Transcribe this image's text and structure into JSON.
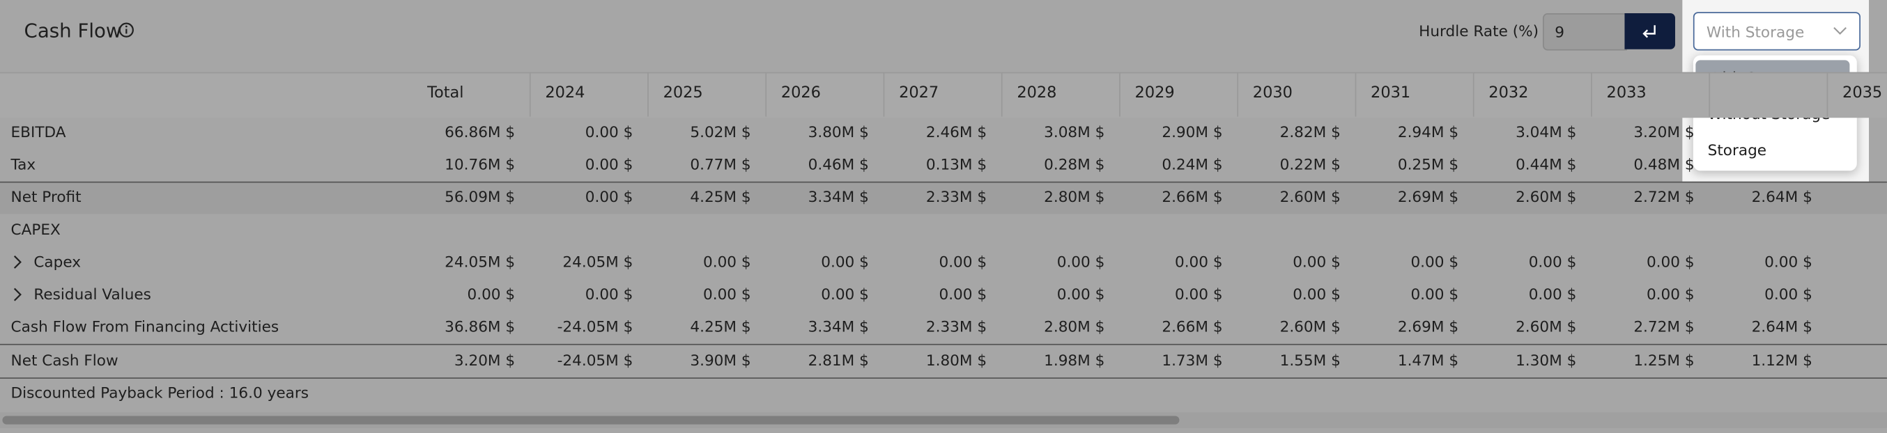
{
  "header": {
    "title": "Cash Flow",
    "hurdle_label": "Hurdle Rate (%) :",
    "hurdle_value": "9",
    "selected": "With Storage"
  },
  "dropdown": {
    "options": [
      "With Storage",
      "Without Storage",
      "Storage"
    ]
  },
  "table": {
    "columns": [
      "Total",
      "2024",
      "2025",
      "2026",
      "2027",
      "2028",
      "2029",
      "2030",
      "2031",
      "2032",
      "2033",
      null,
      "2035"
    ],
    "rows": [
      {
        "label": "EBITDA",
        "values": [
          "66.86M $",
          "0.00 $",
          "5.02M $",
          "3.80M $",
          "2.46M $",
          "3.08M $",
          "2.90M $",
          "2.82M $",
          "2.94M $",
          "3.04M $",
          "3.20M $",
          null,
          null
        ]
      },
      {
        "label": "Tax",
        "values": [
          "10.76M $",
          "0.00 $",
          "0.77M $",
          "0.46M $",
          "0.13M $",
          "0.28M $",
          "0.24M $",
          "0.22M $",
          "0.25M $",
          "0.44M $",
          "0.48M $",
          null,
          null
        ]
      },
      {
        "label": "Net Profit",
        "values": [
          "56.09M $",
          "0.00 $",
          "4.25M $",
          "3.34M $",
          "2.33M $",
          "2.80M $",
          "2.66M $",
          "2.60M $",
          "2.69M $",
          "2.60M $",
          "2.72M $",
          "2.64M $",
          null
        ]
      },
      {
        "label": "CAPEX",
        "values": [
          null,
          null,
          null,
          null,
          null,
          null,
          null,
          null,
          null,
          null,
          null,
          null,
          null
        ]
      },
      {
        "label": "Capex",
        "values": [
          "24.05M $",
          "24.05M $",
          "0.00 $",
          "0.00 $",
          "0.00 $",
          "0.00 $",
          "0.00 $",
          "0.00 $",
          "0.00 $",
          "0.00 $",
          "0.00 $",
          "0.00 $",
          null
        ]
      },
      {
        "label": "Residual Values",
        "values": [
          "0.00 $",
          "0.00 $",
          "0.00 $",
          "0.00 $",
          "0.00 $",
          "0.00 $",
          "0.00 $",
          "0.00 $",
          "0.00 $",
          "0.00 $",
          "0.00 $",
          "0.00 $",
          null
        ]
      },
      {
        "label": "Cash Flow From Financing Activities",
        "values": [
          "36.86M $",
          "-24.05M $",
          "4.25M $",
          "3.34M $",
          "2.33M $",
          "2.80M $",
          "2.66M $",
          "2.60M $",
          "2.69M $",
          "2.60M $",
          "2.72M $",
          "2.64M $",
          null
        ]
      },
      {
        "label": "Net Cash Flow",
        "values": [
          "3.20M $",
          "-24.05M $",
          "3.90M $",
          "2.81M $",
          "1.80M $",
          "1.98M $",
          "1.73M $",
          "1.55M $",
          "1.47M $",
          "1.30M $",
          "1.25M $",
          "1.12M $",
          null
        ]
      }
    ]
  },
  "footer": "Discounted Payback Period : 16.0 years"
}
